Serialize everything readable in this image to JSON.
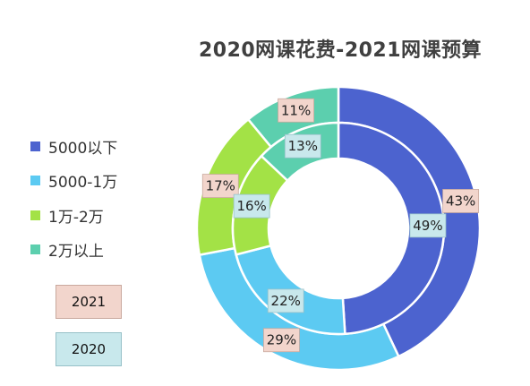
{
  "chart_data": {
    "type": "donut",
    "title": "2020网课花费-2021网课预算",
    "categories": [
      "5000以下",
      "5000-1万",
      "1万-2万",
      "2万以上"
    ],
    "series": [
      {
        "name": "2021",
        "values": [
          43,
          29,
          17,
          11
        ],
        "labels": [
          "43%",
          "29%",
          "17%",
          "11%"
        ]
      },
      {
        "name": "2020",
        "values": [
          49,
          22,
          16,
          13
        ],
        "labels": [
          "49%",
          "22%",
          "16%",
          "13%"
        ]
      }
    ],
    "legend_position": "left",
    "colors": {
      "5000以下": "#4c63cf",
      "5000-1万": "#5ccaf2",
      "1万-2万": "#a3e246",
      "2万以上": "#5ccfae",
      "label_2021_bg": "#f2d5cc",
      "label_2020_bg": "#c8e8ec"
    }
  },
  "legend": {
    "items": [
      "5000以下",
      "5000-1万",
      "1万-2万",
      "2万以上"
    ]
  },
  "year_legend": {
    "outer": "2021",
    "inner": "2020"
  }
}
